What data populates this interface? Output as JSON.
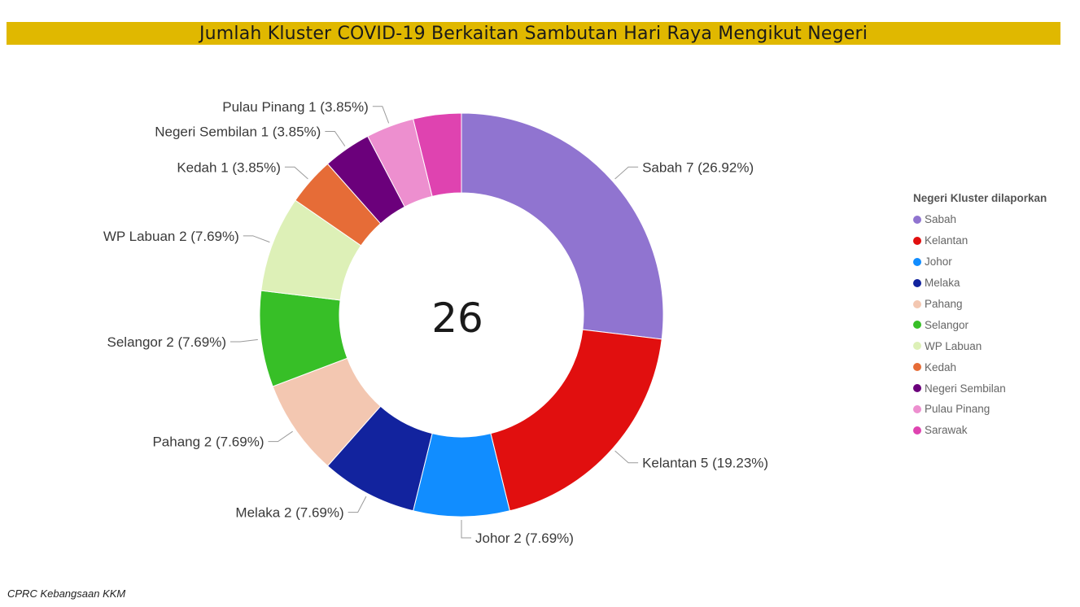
{
  "title": "Jumlah Kluster COVID-19 Berkaitan Sambutan Hari Raya Mengikut Negeri",
  "source": "CPRC Kebangsaan KKM",
  "chart_data": {
    "type": "pie",
    "variant": "donut",
    "center_label": "26",
    "legend": {
      "title": "Negeri Kluster dilaporkan",
      "position": "right"
    },
    "series": [
      {
        "name": "Sabah",
        "value": 7,
        "percent": "26.92%",
        "color": "#9074D0",
        "label": "Sabah 7 (26.92%)"
      },
      {
        "name": "Kelantan",
        "value": 5,
        "percent": "19.23%",
        "color": "#E10F0F",
        "label": "Kelantan 5 (19.23%)"
      },
      {
        "name": "Johor",
        "value": 2,
        "percent": "7.69%",
        "color": "#118DFF",
        "label": "Johor 2 (7.69%)"
      },
      {
        "name": "Melaka",
        "value": 2,
        "percent": "7.69%",
        "color": "#12239E",
        "label": "Melaka 2 (7.69%)"
      },
      {
        "name": "Pahang",
        "value": 2,
        "percent": "7.69%",
        "color": "#F3C7B1",
        "label": "Pahang 2 (7.69%)"
      },
      {
        "name": "Selangor",
        "value": 2,
        "percent": "7.69%",
        "color": "#37BF27",
        "label": "Selangor 2 (7.69%)"
      },
      {
        "name": "WP Labuan",
        "value": 2,
        "percent": "7.69%",
        "color": "#DDF0B7",
        "label": "WP Labuan 2 (7.69%)"
      },
      {
        "name": "Kedah",
        "value": 1,
        "percent": "3.85%",
        "color": "#E66C37",
        "label": "Kedah 1 (3.85%)"
      },
      {
        "name": "Negeri Sembilan",
        "value": 1,
        "percent": "3.85%",
        "color": "#6B007B",
        "label": "Negeri Sembilan 1 (3.85%)"
      },
      {
        "name": "Pulau Pinang",
        "value": 1,
        "percent": "3.85%",
        "color": "#ED8FCF",
        "label": "Pulau Pinang 1 (3.85%)"
      },
      {
        "name": "Sarawak",
        "value": 1,
        "percent": "3.85%",
        "color": "#DF43B0",
        "label": ""
      }
    ]
  }
}
